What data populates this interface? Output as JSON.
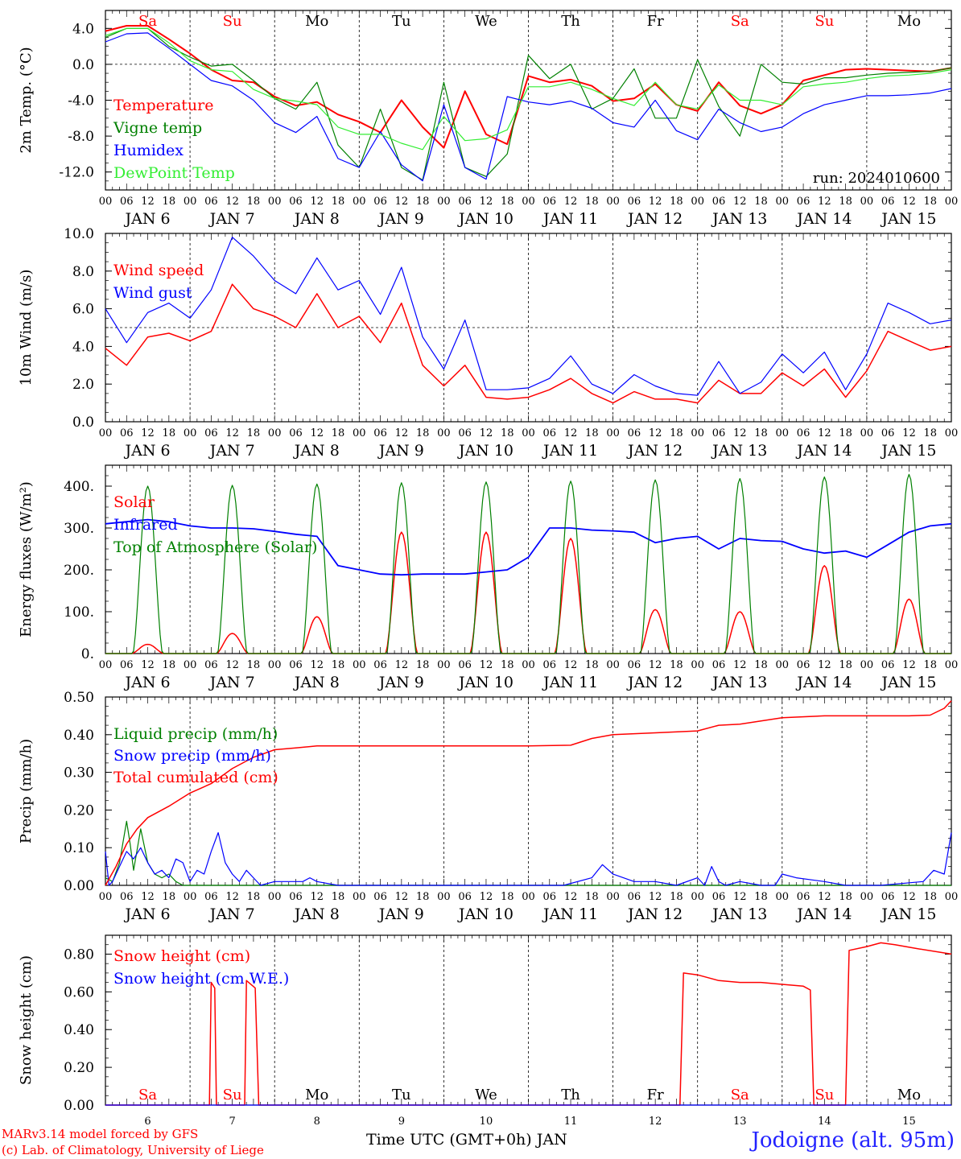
{
  "days_short": [
    "Sa",
    "Su",
    "Mo",
    "Tu",
    "We",
    "Th",
    "Fr",
    "Sa",
    "Su",
    "Mo"
  ],
  "day_colors": [
    "#ff0000",
    "#ff0000",
    "#000000",
    "#000000",
    "#000000",
    "#000000",
    "#000000",
    "#ff0000",
    "#ff0000",
    "#000000"
  ],
  "date_labels": [
    "JAN  6",
    "JAN  7",
    "JAN  8",
    "JAN  9",
    "JAN 10",
    "JAN 11",
    "JAN 12",
    "JAN 13",
    "JAN 14",
    "JAN 15"
  ],
  "hour_labels": [
    "00",
    "06",
    "12",
    "18"
  ],
  "bottom_day_numbers": [
    "6",
    "7",
    "8",
    "9",
    "10",
    "11",
    "12",
    "13",
    "14",
    "15"
  ],
  "footer": {
    "credit_line1": "MARv3.14 model forced by GFS",
    "credit_line2": "(c) Lab. of Climatology, University of Liege",
    "time_axis_label": "Time UTC (GMT+0h) JAN",
    "station": "Jodoigne (alt. 95m)"
  },
  "chart_data": [
    {
      "type": "line",
      "ylabel": "2m Temp. (°C)",
      "ylim": [
        -14,
        6
      ],
      "yticks": [
        4,
        0,
        -4,
        -8,
        -12
      ],
      "ytick_labels": [
        "4.0",
        "0.0",
        "-4.0",
        "-8.0",
        "-12.0"
      ],
      "ref_line": 0,
      "annotation": "run: 2024010600",
      "x_hours": [
        0,
        6,
        12,
        18,
        24,
        30,
        36,
        42,
        48,
        54,
        60,
        66,
        72,
        78,
        84,
        90,
        96,
        102,
        108,
        114,
        120,
        126,
        132,
        138,
        144,
        150,
        156,
        162,
        168,
        174,
        180,
        186,
        192,
        198,
        204,
        210,
        216,
        222,
        228,
        234,
        240
      ],
      "series": [
        {
          "name": "Temperature",
          "color": "#ff0000",
          "width": 2,
          "values": [
            3.7,
            4.3,
            4.3,
            2.8,
            1.2,
            -0.6,
            -1.8,
            -2.0,
            -3.6,
            -4.6,
            -4.2,
            -5.6,
            -6.4,
            -7.6,
            -4.0,
            -7.0,
            -9.3,
            -3.0,
            -7.8,
            -8.9,
            -1.3,
            -2.0,
            -1.7,
            -2.4,
            -4.1,
            -3.8,
            -2.2,
            -4.5,
            -5.2,
            -2.0,
            -4.6,
            -5.5,
            -4.5,
            -1.8,
            -1.2,
            -0.6,
            -0.5,
            -0.6,
            -0.7,
            -0.8,
            -0.4
          ]
        },
        {
          "name": "Vigne temp",
          "color": "#008000",
          "width": 1.2,
          "values": [
            3.0,
            4.0,
            4.0,
            2.0,
            0.8,
            -0.2,
            0.0,
            -1.8,
            -3.8,
            -5.0,
            -2.0,
            -9.0,
            -11.5,
            -5.0,
            -11.5,
            -12.9,
            -2.0,
            -11.5,
            -12.5,
            -10.0,
            1.0,
            -1.6,
            0.0,
            -5.0,
            -3.8,
            -0.5,
            -6.0,
            -6.0,
            0.5,
            -4.7,
            -8.0,
            0.0,
            -2.0,
            -2.2,
            -1.5,
            -1.5,
            -1.2,
            -1.0,
            -0.9,
            -0.8,
            -0.4
          ]
        },
        {
          "name": "Humidex",
          "color": "#0000ff",
          "width": 1.2,
          "values": [
            2.5,
            3.4,
            3.5,
            1.8,
            0.0,
            -1.8,
            -2.4,
            -4.0,
            -6.5,
            -7.6,
            -5.8,
            -10.5,
            -11.5,
            -7.5,
            -11.2,
            -13.0,
            -4.5,
            -11.5,
            -12.8,
            -3.6,
            -4.2,
            -4.5,
            -4.1,
            -4.9,
            -6.5,
            -7.0,
            -4.0,
            -7.4,
            -8.4,
            -5.0,
            -6.5,
            -7.5,
            -7.0,
            -5.5,
            -4.5,
            -4.0,
            -3.5,
            -3.5,
            -3.4,
            -3.2,
            -2.7
          ]
        },
        {
          "name": "DewPoint Temp",
          "color": "#33ee33",
          "width": 1.2,
          "values": [
            3.2,
            4.0,
            4.0,
            2.4,
            0.4,
            -0.6,
            -0.8,
            -2.8,
            -3.8,
            -4.1,
            -4.5,
            -7.0,
            -7.8,
            -7.8,
            -8.8,
            -9.5,
            -5.8,
            -8.5,
            -8.3,
            -7.3,
            -2.5,
            -2.5,
            -2.0,
            -2.8,
            -3.8,
            -4.6,
            -2.0,
            -4.5,
            -5.0,
            -2.3,
            -4.0,
            -4.0,
            -4.5,
            -2.5,
            -2.2,
            -2.0,
            -1.6,
            -1.3,
            -1.2,
            -1.0,
            -0.6
          ]
        }
      ]
    },
    {
      "type": "line",
      "ylabel": "10m Wind (m/s)",
      "ylim": [
        0,
        10
      ],
      "yticks": [
        0,
        2,
        4,
        6,
        8,
        10
      ],
      "ytick_labels": [
        "0.0",
        "2.0",
        "4.0",
        "6.0",
        "8.0",
        "10.0"
      ],
      "ref_line": 5,
      "x_hours": [
        0,
        6,
        12,
        18,
        24,
        30,
        36,
        42,
        48,
        54,
        60,
        66,
        72,
        78,
        84,
        90,
        96,
        102,
        108,
        114,
        120,
        126,
        132,
        138,
        144,
        150,
        156,
        162,
        168,
        174,
        180,
        186,
        192,
        198,
        204,
        210,
        216,
        222,
        228,
        234,
        240
      ],
      "series": [
        {
          "name": "Wind speed",
          "color": "#ff0000",
          "width": 1.5,
          "values": [
            3.9,
            3.0,
            4.5,
            4.7,
            4.3,
            4.8,
            7.3,
            6.0,
            5.6,
            5.0,
            6.8,
            5.0,
            5.6,
            4.2,
            6.3,
            3.0,
            1.9,
            3.0,
            1.3,
            1.2,
            1.3,
            1.7,
            2.3,
            1.5,
            1.0,
            1.6,
            1.2,
            1.2,
            1.0,
            2.2,
            1.5,
            1.5,
            2.6,
            1.9,
            2.8,
            1.3,
            2.7,
            4.8,
            4.3,
            3.8,
            4.0
          ]
        },
        {
          "name": "Wind gust",
          "color": "#0000ff",
          "width": 1.2,
          "values": [
            6.0,
            4.2,
            5.8,
            6.3,
            5.5,
            7.0,
            9.8,
            8.8,
            7.5,
            6.8,
            8.7,
            7.0,
            7.5,
            5.7,
            8.2,
            4.5,
            2.8,
            5.4,
            1.7,
            1.7,
            1.8,
            2.3,
            3.5,
            2.0,
            1.5,
            2.5,
            1.9,
            1.5,
            1.4,
            3.2,
            1.5,
            2.1,
            3.6,
            2.6,
            3.7,
            1.7,
            3.6,
            6.3,
            5.8,
            5.2,
            5.4
          ]
        }
      ]
    },
    {
      "type": "line",
      "ylabel": "Energy fluxes (W/m²)",
      "ylim": [
        0,
        450
      ],
      "yticks": [
        0,
        100,
        200,
        300,
        400
      ],
      "ytick_labels": [
        "0.",
        "100.",
        "200.",
        "300.",
        "400."
      ],
      "series": [
        {
          "name": "Solar",
          "color": "#ff0000",
          "width": 1.5,
          "peak_hour": 12,
          "halfwidth_hours": 4.5,
          "peaks": [
            22,
            48,
            88,
            290,
            290,
            275,
            105,
            100,
            210,
            130
          ]
        },
        {
          "name": "Infrared",
          "color": "#0000ff",
          "width": 1.8,
          "x_hours": [
            0,
            6,
            12,
            18,
            24,
            30,
            36,
            42,
            48,
            54,
            60,
            66,
            72,
            78,
            84,
            90,
            96,
            102,
            108,
            114,
            120,
            126,
            132,
            138,
            144,
            150,
            156,
            162,
            168,
            174,
            180,
            186,
            192,
            198,
            204,
            210,
            216,
            222,
            228,
            234,
            240
          ],
          "values": [
            310,
            315,
            320,
            315,
            305,
            300,
            300,
            298,
            292,
            285,
            280,
            210,
            200,
            190,
            188,
            190,
            190,
            190,
            195,
            200,
            230,
            300,
            300,
            295,
            293,
            290,
            265,
            275,
            280,
            250,
            275,
            270,
            268,
            250,
            240,
            245,
            230,
            260,
            290,
            305,
            310
          ]
        },
        {
          "name": "Top of Atmosphere (Solar)",
          "color": "#008000",
          "width": 1.2,
          "peak_hour": 12,
          "halfwidth_hours": 4.2,
          "peaks": [
            400,
            402,
            405,
            408,
            410,
            412,
            415,
            418,
            422,
            428
          ]
        }
      ]
    },
    {
      "type": "line",
      "ylabel": "Precip (mm/h)",
      "ylim": [
        0,
        0.5
      ],
      "yticks": [
        0,
        0.1,
        0.2,
        0.3,
        0.4,
        0.5
      ],
      "ytick_labels": [
        "0.00",
        "0.10",
        "0.20",
        "0.30",
        "0.40",
        "0.50"
      ],
      "series": [
        {
          "name": "Liquid precip (mm/h)",
          "color": "#008000",
          "width": 1.2,
          "x_hours": [
            0,
            2,
            4,
            6,
            7,
            8,
            10,
            12,
            14,
            16,
            18,
            20,
            22,
            24,
            28,
            30,
            32,
            34,
            40,
            240
          ],
          "values": [
            0.02,
            0.01,
            0.06,
            0.17,
            0.11,
            0.04,
            0.15,
            0.06,
            0.03,
            0.02,
            0.03,
            0.01,
            0.0,
            0.0,
            0.0,
            0.0,
            0.0,
            0.0,
            0.0,
            0.0
          ]
        },
        {
          "name": "Snow precip (mm/h)",
          "color": "#0000ff",
          "width": 1.2,
          "x_hours": [
            0,
            1,
            2,
            3,
            4,
            6,
            8,
            10,
            12,
            14,
            16,
            18,
            20,
            22,
            24,
            26,
            28,
            30,
            32,
            34,
            36,
            38,
            40,
            42,
            44,
            48,
            56,
            58,
            60,
            66,
            72,
            120,
            130,
            138,
            141,
            144,
            150,
            156,
            162,
            168,
            170,
            172,
            174,
            176,
            180,
            186,
            190,
            192,
            196,
            204,
            210,
            214,
            220,
            232,
            235,
            238,
            240
          ],
          "values": [
            0.09,
            0.0,
            0.01,
            0.03,
            0.05,
            0.09,
            0.07,
            0.1,
            0.06,
            0.03,
            0.04,
            0.02,
            0.07,
            0.06,
            0.01,
            0.04,
            0.03,
            0.09,
            0.14,
            0.06,
            0.03,
            0.01,
            0.04,
            0.02,
            0.0,
            0.01,
            0.01,
            0.02,
            0.01,
            0.0,
            0.0,
            0.0,
            0.0,
            0.02,
            0.055,
            0.03,
            0.01,
            0.01,
            0.0,
            0.02,
            0.0,
            0.05,
            0.01,
            0.0,
            0.01,
            0.0,
            0.0,
            0.03,
            0.02,
            0.01,
            0.0,
            0.0,
            0.0,
            0.01,
            0.04,
            0.03,
            0.14
          ]
        },
        {
          "name": "Total cumulated (cm)",
          "color": "#ff0000",
          "width": 1.5,
          "x_hours": [
            0,
            3,
            6,
            9,
            12,
            18,
            24,
            30,
            36,
            42,
            48,
            54,
            60,
            72,
            96,
            120,
            132,
            138,
            144,
            156,
            168,
            174,
            180,
            192,
            204,
            216,
            228,
            234,
            238,
            240
          ],
          "values": [
            0.0,
            0.05,
            0.11,
            0.15,
            0.18,
            0.21,
            0.245,
            0.27,
            0.31,
            0.34,
            0.36,
            0.365,
            0.37,
            0.37,
            0.37,
            0.37,
            0.372,
            0.39,
            0.4,
            0.405,
            0.41,
            0.425,
            0.428,
            0.445,
            0.45,
            0.45,
            0.45,
            0.452,
            0.47,
            0.49
          ]
        }
      ]
    },
    {
      "type": "line",
      "ylabel": "Snow height (cm)",
      "ylim": [
        0,
        0.9
      ],
      "yticks": [
        0,
        0.2,
        0.4,
        0.6,
        0.8
      ],
      "ytick_labels": [
        "0.00",
        "0.20",
        "0.40",
        "0.60",
        "0.80"
      ],
      "series": [
        {
          "name": "Snow height (cm)",
          "color": "#ff0000",
          "width": 1.5,
          "x_hours": [
            0,
            29.5,
            30,
            31,
            31.5,
            39.5,
            40,
            42.5,
            43.5,
            240
          ],
          "values": [
            0,
            0,
            0.65,
            0.62,
            0,
            0,
            0.66,
            0.62,
            0,
            0
          ],
          "extra": [
            [
              163,
              0
            ],
            [
              164,
              0.7
            ],
            [
              168,
              0.69
            ],
            [
              174,
              0.66
            ],
            [
              180,
              0.65
            ],
            [
              186,
              0.65
            ],
            [
              192,
              0.64
            ],
            [
              198,
              0.63
            ],
            [
              200,
              0.61
            ],
            [
              201,
              0
            ],
            [
              210,
              0
            ],
            [
              211,
              0.82
            ],
            [
              216,
              0.84
            ],
            [
              220,
              0.86
            ],
            [
              224,
              0.85
            ],
            [
              230,
              0.83
            ],
            [
              240,
              0.8
            ]
          ]
        },
        {
          "name": "Snow height (cm W.E.)",
          "color": "#0000ff",
          "width": 1.2,
          "x_hours": [
            0,
            240
          ],
          "values": [
            0,
            0
          ]
        }
      ]
    }
  ]
}
